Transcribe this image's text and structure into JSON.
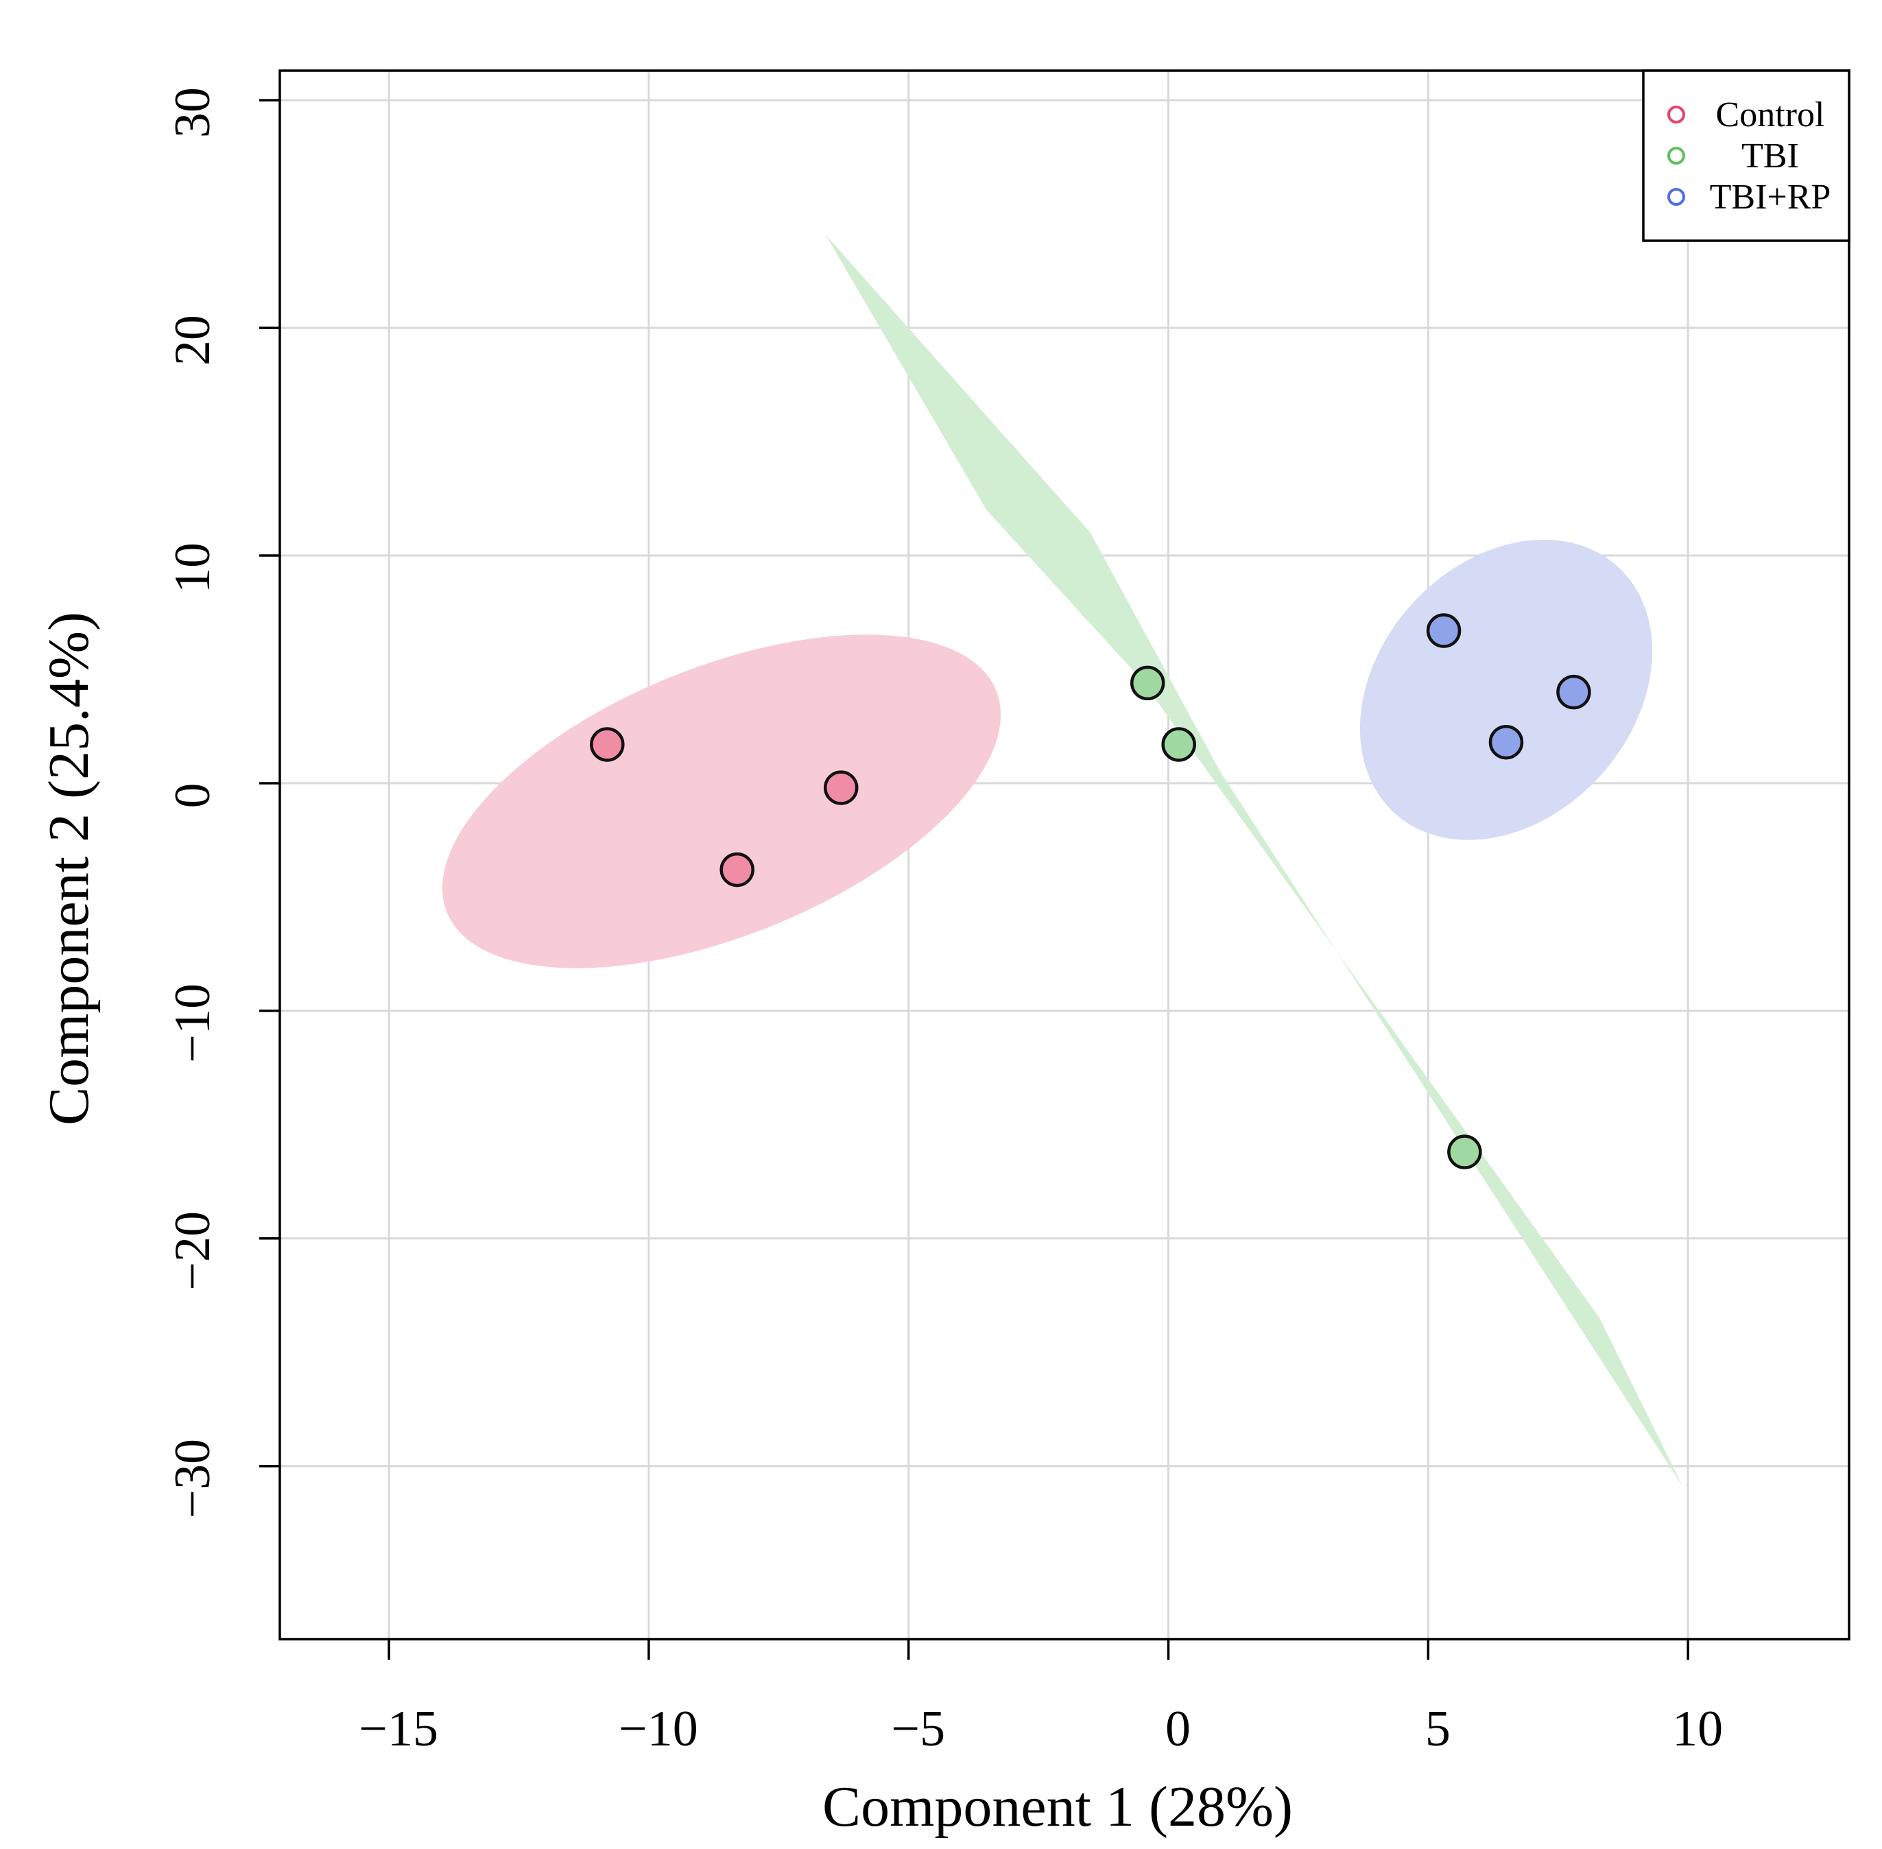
{
  "chart_data": {
    "type": "scatter",
    "title": "",
    "xlabel": "Component 1 (28%)",
    "ylabel": "Component 2 (25.4%)",
    "xlim": [
      -17.1,
      13.1
    ],
    "ylim": [
      -37.6,
      31.3
    ],
    "x_ticks": [
      -15,
      -10,
      -5,
      0,
      5,
      10
    ],
    "y_ticks": [
      -30,
      -20,
      -10,
      0,
      10,
      20,
      30
    ],
    "x_tick_labels": [
      "−15",
      "−10",
      "−5",
      "0",
      "5",
      "10"
    ],
    "y_tick_labels": [
      "−30",
      "−20",
      "−10",
      "0",
      "10",
      "20",
      "30"
    ],
    "grid": true,
    "legend_position": "top-right",
    "series": [
      {
        "name": "Control",
        "color": "#e8426a",
        "fill": "#f08ca4",
        "region_fill": "#f7ccd7",
        "points": [
          {
            "x": -10.8,
            "y": 1.7
          },
          {
            "x": -6.3,
            "y": -0.2
          },
          {
            "x": -8.3,
            "y": -3.8
          }
        ],
        "ellipse": {
          "cx": -8.6,
          "cy": -0.8,
          "rx": 5.7,
          "ry": 5.9,
          "angle_deg": -22
        }
      },
      {
        "name": "TBI",
        "color": "#5cc25c",
        "fill": "#9fd8a0",
        "region_fill": "#d2eed2",
        "points": [
          {
            "x": -0.4,
            "y": 4.4
          },
          {
            "x": 0.2,
            "y": 1.7
          },
          {
            "x": 5.7,
            "y": -16.2
          }
        ],
        "region_polygon": [
          {
            "x": -6.6,
            "y": 24.1
          },
          {
            "x": -1.5,
            "y": 11.0
          },
          {
            "x": 1.0,
            "y": 0.5
          },
          {
            "x": 9.9,
            "y": -30.9
          },
          {
            "x": 8.3,
            "y": -23.5
          },
          {
            "x": -0.5,
            "y": 4.5
          },
          {
            "x": -3.5,
            "y": 12.0
          }
        ]
      },
      {
        "name": "TBI+RP",
        "color": "#5070e0",
        "fill": "#8fa3ea",
        "region_fill": "#d5dbf5",
        "points": [
          {
            "x": 5.3,
            "y": 6.7
          },
          {
            "x": 7.8,
            "y": 4.0
          },
          {
            "x": 6.5,
            "y": 1.8
          }
        ],
        "ellipse": {
          "cx": 6.5,
          "cy": 4.1,
          "rx": 3.2,
          "ry": 5.6,
          "angle_deg": -48
        }
      }
    ]
  }
}
